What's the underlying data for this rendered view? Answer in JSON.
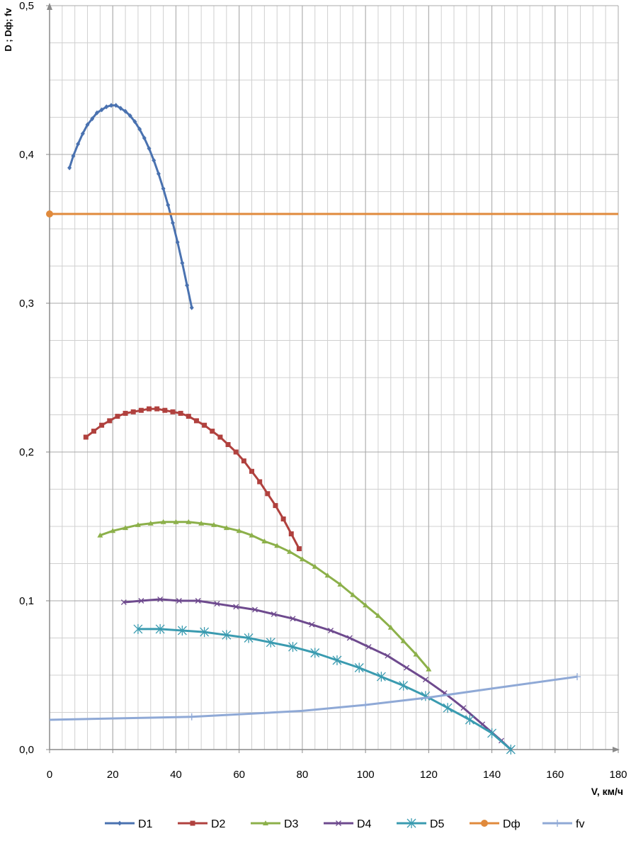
{
  "chart_data": {
    "type": "line",
    "xlabel": "V, км/ч",
    "ylabel": "D ; Dф; fv",
    "xlim": [
      0,
      180
    ],
    "ylim": [
      0,
      0.5
    ],
    "xticks": [
      0,
      20,
      40,
      60,
      80,
      100,
      120,
      140,
      160,
      180
    ],
    "xtick_labels": [
      "0",
      "20",
      "40",
      "60",
      "80",
      "100",
      "120",
      "140",
      "160",
      "180"
    ],
    "yticks": [
      0,
      0.1,
      0.2,
      0.3,
      0.4,
      0.5
    ],
    "ytick_labels": [
      "0,0",
      "0,1",
      "0,2",
      "0,3",
      "0,4",
      "0,5"
    ],
    "grid": true,
    "legend_position": "bottom",
    "series": [
      {
        "name": "D1",
        "color": "#4A72B0",
        "marker": "diamond",
        "points": [
          [
            6.3,
            0.391
          ],
          [
            7.5,
            0.399
          ],
          [
            9,
            0.407
          ],
          [
            10.5,
            0.414
          ],
          [
            12,
            0.42
          ],
          [
            13.5,
            0.424
          ],
          [
            15,
            0.428
          ],
          [
            16.5,
            0.43
          ],
          [
            18,
            0.432
          ],
          [
            19.5,
            0.433
          ],
          [
            21,
            0.433
          ],
          [
            22.5,
            0.431
          ],
          [
            24,
            0.429
          ],
          [
            25.5,
            0.426
          ],
          [
            27,
            0.422
          ],
          [
            28.5,
            0.417
          ],
          [
            30,
            0.411
          ],
          [
            31.5,
            0.404
          ],
          [
            33,
            0.396
          ],
          [
            34.5,
            0.387
          ],
          [
            36,
            0.377
          ],
          [
            37.5,
            0.366
          ],
          [
            39,
            0.354
          ],
          [
            40.5,
            0.341
          ],
          [
            42,
            0.327
          ],
          [
            43.5,
            0.312
          ],
          [
            45,
            0.297
          ]
        ]
      },
      {
        "name": "D2",
        "color": "#B0413E",
        "marker": "square",
        "points": [
          [
            11.5,
            0.21
          ],
          [
            14,
            0.214
          ],
          [
            16.5,
            0.218
          ],
          [
            19,
            0.221
          ],
          [
            21.5,
            0.224
          ],
          [
            24,
            0.226
          ],
          [
            26.5,
            0.227
          ],
          [
            29,
            0.228
          ],
          [
            31.5,
            0.229
          ],
          [
            34,
            0.229
          ],
          [
            36.5,
            0.228
          ],
          [
            39,
            0.227
          ],
          [
            41.5,
            0.226
          ],
          [
            44,
            0.224
          ],
          [
            46.5,
            0.221
          ],
          [
            49,
            0.218
          ],
          [
            51.5,
            0.214
          ],
          [
            54,
            0.21
          ],
          [
            56.5,
            0.205
          ],
          [
            59,
            0.2
          ],
          [
            61.5,
            0.194
          ],
          [
            64,
            0.187
          ],
          [
            66.5,
            0.18
          ],
          [
            69,
            0.172
          ],
          [
            71.5,
            0.164
          ],
          [
            74,
            0.155
          ],
          [
            76.5,
            0.145
          ],
          [
            79,
            0.135
          ]
        ]
      },
      {
        "name": "D3",
        "color": "#8CB04A",
        "marker": "triangle",
        "points": [
          [
            16,
            0.144
          ],
          [
            20,
            0.147
          ],
          [
            24,
            0.149
          ],
          [
            28,
            0.151
          ],
          [
            32,
            0.152
          ],
          [
            36,
            0.153
          ],
          [
            40,
            0.153
          ],
          [
            44,
            0.153
          ],
          [
            48,
            0.152
          ],
          [
            52,
            0.151
          ],
          [
            56,
            0.149
          ],
          [
            60,
            0.147
          ],
          [
            64,
            0.144
          ],
          [
            68,
            0.14
          ],
          [
            72,
            0.137
          ],
          [
            76,
            0.133
          ],
          [
            80,
            0.128
          ],
          [
            84,
            0.123
          ],
          [
            88,
            0.117
          ],
          [
            92,
            0.111
          ],
          [
            96,
            0.104
          ],
          [
            100,
            0.097
          ],
          [
            104,
            0.09
          ],
          [
            108,
            0.082
          ],
          [
            112,
            0.073
          ],
          [
            116,
            0.064
          ],
          [
            120,
            0.054
          ]
        ]
      },
      {
        "name": "D4",
        "color": "#6E4A8E",
        "marker": "x",
        "points": [
          [
            23.5,
            0.099
          ],
          [
            29,
            0.1
          ],
          [
            35,
            0.101
          ],
          [
            41,
            0.1
          ],
          [
            47,
            0.1
          ],
          [
            53,
            0.098
          ],
          [
            59,
            0.096
          ],
          [
            65,
            0.094
          ],
          [
            71,
            0.091
          ],
          [
            77,
            0.088
          ],
          [
            83,
            0.084
          ],
          [
            89,
            0.08
          ],
          [
            95,
            0.075
          ],
          [
            101,
            0.069
          ],
          [
            107,
            0.063
          ],
          [
            113,
            0.055
          ],
          [
            119,
            0.047
          ],
          [
            125,
            0.038
          ],
          [
            131,
            0.028
          ],
          [
            137,
            0.017
          ],
          [
            143,
            0.006
          ],
          [
            146,
            0
          ]
        ]
      },
      {
        "name": "D5",
        "color": "#3A9BB0",
        "marker": "asterisk",
        "points": [
          [
            28,
            0.081
          ],
          [
            35,
            0.081
          ],
          [
            42,
            0.08
          ],
          [
            49,
            0.079
          ],
          [
            56,
            0.077
          ],
          [
            63,
            0.075
          ],
          [
            70,
            0.072
          ],
          [
            77,
            0.069
          ],
          [
            84,
            0.065
          ],
          [
            91,
            0.06
          ],
          [
            98,
            0.055
          ],
          [
            105,
            0.049
          ],
          [
            112,
            0.043
          ],
          [
            119,
            0.036
          ],
          [
            126,
            0.028
          ],
          [
            133,
            0.02
          ],
          [
            140,
            0.011
          ],
          [
            146,
            0
          ]
        ]
      },
      {
        "name": "Dф",
        "color": "#E08A3C",
        "marker": "circle",
        "points": [
          [
            0,
            0.36
          ],
          [
            180,
            0.36
          ]
        ]
      },
      {
        "name": "fv",
        "color": "#8FA9D6",
        "marker": "plus",
        "points": [
          [
            0,
            0.02
          ],
          [
            45,
            0.022
          ],
          [
            80,
            0.026
          ],
          [
            100,
            0.03
          ],
          [
            120,
            0.035
          ],
          [
            140,
            0.041
          ],
          [
            167,
            0.049
          ]
        ]
      }
    ]
  }
}
